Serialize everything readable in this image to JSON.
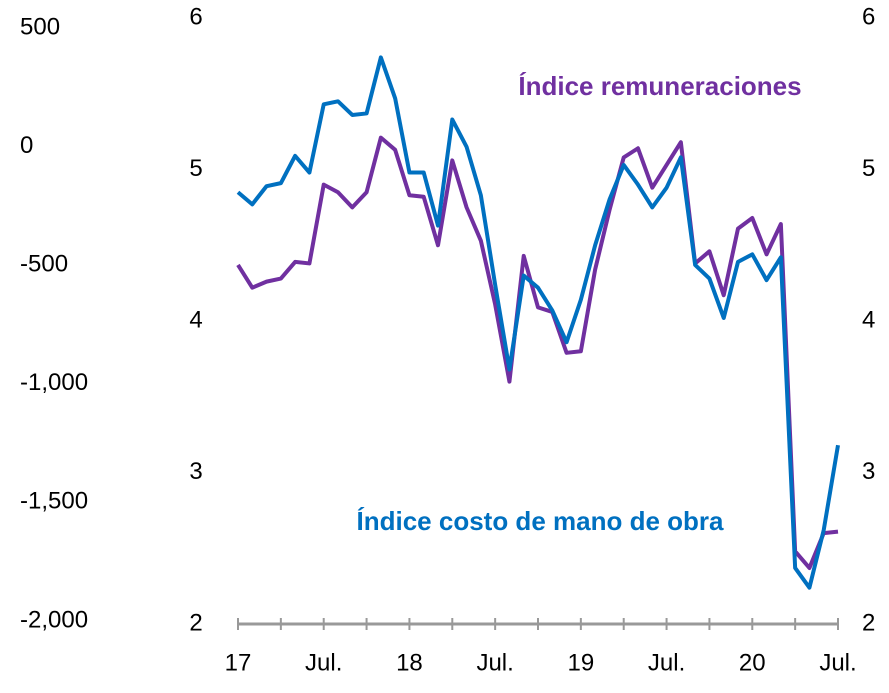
{
  "chart_data": {
    "type": "line",
    "categories": [
      "17",
      null,
      null,
      null,
      null,
      null,
      "Jul.",
      null,
      null,
      null,
      null,
      null,
      "18",
      null,
      null,
      null,
      null,
      null,
      "Jul.",
      null,
      null,
      null,
      null,
      null,
      "19",
      null,
      null,
      null,
      null,
      null,
      "Jul.",
      null,
      null,
      null,
      null,
      null,
      "20",
      null,
      null,
      null,
      null,
      null,
      "Jul."
    ],
    "series": [
      {
        "name": "Índice costo de mano de obra",
        "color": "#0070c0",
        "values": [
          4.85,
          4.77,
          4.89,
          4.91,
          5.09,
          4.98,
          5.43,
          5.45,
          5.36,
          5.37,
          5.74,
          5.47,
          4.98,
          4.98,
          4.63,
          5.33,
          5.15,
          4.83,
          4.24,
          3.68,
          4.3,
          4.22,
          4.07,
          3.86,
          4.14,
          4.5,
          4.8,
          5.03,
          4.9,
          4.75,
          4.88,
          5.08,
          4.37,
          4.28,
          4.02,
          4.39,
          4.44,
          4.27,
          4.42,
          2.37,
          2.24,
          2.62,
          3.18
        ]
      },
      {
        "name": "Índice remuneraciones",
        "color": "#7030a0",
        "values": [
          4.37,
          4.22,
          4.26,
          4.28,
          4.39,
          4.38,
          4.9,
          4.85,
          4.75,
          4.85,
          5.21,
          5.13,
          4.83,
          4.82,
          4.5,
          5.06,
          4.75,
          4.53,
          4.11,
          3.6,
          4.43,
          4.09,
          4.06,
          3.79,
          3.8,
          4.34,
          4.73,
          5.08,
          5.14,
          4.88,
          5.03,
          5.18,
          4.38,
          4.46,
          4.17,
          4.61,
          4.68,
          4.44,
          4.64,
          2.48,
          2.37,
          2.6,
          2.61
        ]
      }
    ],
    "ylim": [
      2,
      6
    ],
    "yticks": [
      2,
      3,
      4,
      5,
      6
    ],
    "y2lim": [
      -2013,
      542
    ],
    "y2ticks": [
      {
        "value": -2000,
        "label": "-2,000"
      },
      {
        "value": -1500,
        "label": "-1,500"
      },
      {
        "value": -1000,
        "label": "-1,000"
      },
      -500,
      0,
      500
    ]
  }
}
